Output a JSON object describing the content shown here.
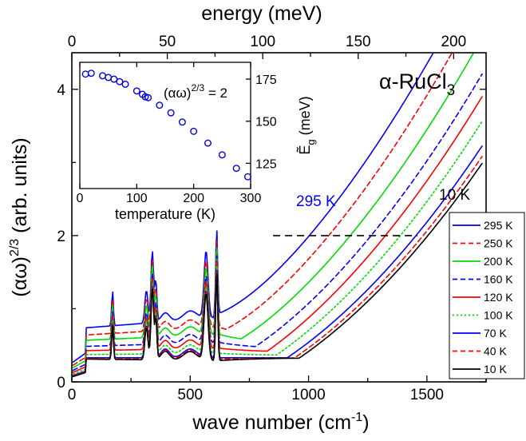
{
  "chart_data": {
    "type": "line",
    "main": {
      "xlabel_prefix": "wave number (cm",
      "xlabel_sup": "-1",
      "xlabel_suffix": ")",
      "ylabel_prefix": "(αω)",
      "ylabel_sup": "2/3",
      "ylabel_suffix": " (arb. units)",
      "top_xlabel": "energy (meV)",
      "xlim": [
        0,
        1750
      ],
      "ylim": [
        0,
        4.5
      ],
      "top_xlim": [
        0,
        217
      ],
      "x_ticks": [
        0,
        500,
        1000,
        1500
      ],
      "x_tick_labels": [
        "0",
        "500",
        "1000",
        "1500"
      ],
      "y_ticks": [
        0,
        2,
        4
      ],
      "y_tick_labels": [
        "0",
        "2",
        "4"
      ],
      "top_ticks": [
        0,
        50,
        100,
        150,
        200
      ],
      "top_tick_labels": [
        "0",
        "50",
        "100",
        "150",
        "200"
      ],
      "threshold_y": 2.0,
      "threshold_x_range": [
        850,
        1460
      ],
      "material_prefix": "α-RuCl",
      "material_sub": "3",
      "annotation_hot": "295 K",
      "annotation_cold": "10 K",
      "phonon_peaks": [
        {
          "x": 172,
          "h": 0.48,
          "w": 5
        },
        {
          "x": 315,
          "h": 0.45,
          "w": 9
        },
        {
          "x": 340,
          "h": 0.98,
          "w": 8
        },
        {
          "x": 355,
          "h": 0.55,
          "w": 6
        },
        {
          "x": 395,
          "h": 0.12,
          "w": 25
        },
        {
          "x": 500,
          "h": 0.12,
          "w": 40
        },
        {
          "x": 567,
          "h": 0.92,
          "w": 12
        },
        {
          "x": 612,
          "h": 1.22,
          "w": 6
        }
      ],
      "series": [
        {
          "name": "295 K",
          "color": "#0000ff",
          "dash": "solid",
          "edge": 1100,
          "slope": 0.0027,
          "baseline": 0.62,
          "offset": 0.26
        },
        {
          "name": "250 K",
          "color": "#ff0000",
          "dash": "dashed",
          "edge": 1150,
          "slope": 0.0026,
          "baseline": 0.55,
          "offset": 0.2
        },
        {
          "name": "200 K",
          "color": "#00dd00",
          "dash": "solid",
          "edge": 1215,
          "slope": 0.0025,
          "baseline": 0.5,
          "offset": 0.15
        },
        {
          "name": "160 K",
          "color": "#0000ff",
          "dash": "dashed",
          "edge": 1275,
          "slope": 0.0024,
          "baseline": 0.44,
          "offset": 0.1
        },
        {
          "name": "120 K",
          "color": "#ff0000",
          "dash": "solid",
          "edge": 1325,
          "slope": 0.0024,
          "baseline": 0.4,
          "offset": 0.06
        },
        {
          "name": "100 K",
          "color": "#00dd00",
          "dash": "dotted",
          "edge": 1365,
          "slope": 0.0023,
          "baseline": 0.36,
          "offset": 0.03
        },
        {
          "name": "70 K",
          "color": "#0000ff",
          "dash": "solid",
          "edge": 1410,
          "slope": 0.0022,
          "baseline": 0.33,
          "offset": 0.0
        },
        {
          "name": "40 K",
          "color": "#ff0000",
          "dash": "dashed",
          "edge": 1440,
          "slope": 0.0022,
          "baseline": 0.33,
          "offset": -0.02
        },
        {
          "name": "10 K",
          "color": "#000000",
          "dash": "solid",
          "edge": 1460,
          "slope": 0.0022,
          "baseline": 0.33,
          "offset": -0.04
        }
      ]
    },
    "inset": {
      "type": "scatter",
      "xlabel": "temperature (K)",
      "ylabel_prefix": "Ẽ",
      "ylabel_sub": "g",
      "ylabel_suffix": " (meV)",
      "xlim": [
        0,
        300
      ],
      "ylim": [
        110,
        185
      ],
      "x_ticks": [
        0,
        100,
        200,
        300
      ],
      "x_tick_labels": [
        "0",
        "100",
        "200",
        "300"
      ],
      "y_ticks": [
        125,
        150,
        175
      ],
      "y_tick_labels": [
        "125",
        "150",
        "175"
      ],
      "annotation_prefix": "(αω)",
      "annotation_sup": "2/3",
      "annotation_suffix": " = 2",
      "marker_color": "#0000dd",
      "points": [
        {
          "x": 10,
          "y": 178
        },
        {
          "x": 20,
          "y": 178.5
        },
        {
          "x": 40,
          "y": 177
        },
        {
          "x": 50,
          "y": 176
        },
        {
          "x": 60,
          "y": 175
        },
        {
          "x": 70,
          "y": 173.5
        },
        {
          "x": 80,
          "y": 172
        },
        {
          "x": 100,
          "y": 168
        },
        {
          "x": 110,
          "y": 166
        },
        {
          "x": 115,
          "y": 164.5
        },
        {
          "x": 120,
          "y": 164
        },
        {
          "x": 140,
          "y": 159.5
        },
        {
          "x": 160,
          "y": 155
        },
        {
          "x": 180,
          "y": 149.5
        },
        {
          "x": 200,
          "y": 144
        },
        {
          "x": 225,
          "y": 137
        },
        {
          "x": 250,
          "y": 130
        },
        {
          "x": 275,
          "y": 122
        },
        {
          "x": 295,
          "y": 117
        }
      ]
    }
  }
}
